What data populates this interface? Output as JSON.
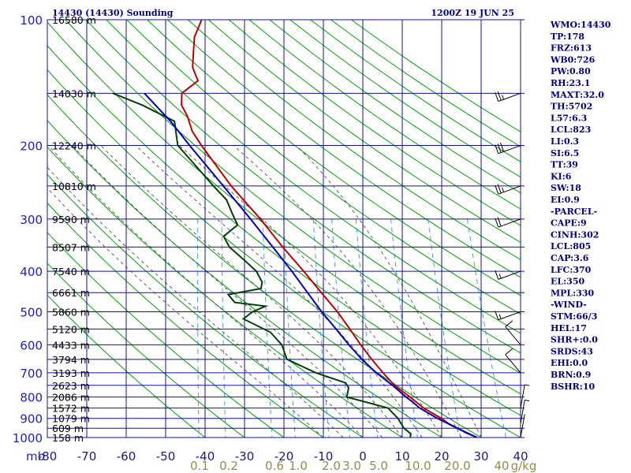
{
  "header": {
    "station": "14430 (14430) Sounding",
    "time": "1200Z 19 JUN 25"
  },
  "indices": [
    "WMO:14430",
    "TP:178",
    "FRZ:613",
    "WB0:726",
    "PW:0.80",
    "RH:23.1",
    "MAXT:32.0",
    "TH:5702",
    "L57:6.3",
    "LCL:823",
    "LI:0.3",
    "SI:6.5",
    "TT:39",
    "KI:6",
    "SW:18",
    "EI:0.9",
    "-PARCEL-",
    "CAPE:9",
    "CINH:302",
    "LCL:805",
    "CAP:3.6",
    "LFC:370",
    "EL:350",
    "MPL:330",
    "-WIND-",
    "STM:66/3",
    "HEL:17",
    "SHR+:0.0",
    "SRDS:43",
    "EHI:0.0",
    "BRN:0.9",
    "BSHR:10"
  ],
  "colors": {
    "grid": "#1010a0",
    "dry_adiabat": "#00a000",
    "moist_adiabat": "#505050",
    "mixing_ratio": "#3090ff",
    "temperature": "#c00000",
    "dewpoint": "#004000",
    "parcel": "#0000c0",
    "mixing_label": "#9a8a4a"
  },
  "chart_data": {
    "type": "line",
    "title": "14430 (14430) Sounding",
    "xlabel": "",
    "ylabel": "mb",
    "pressure_ticks": [
      100,
      200,
      300,
      400,
      500,
      600,
      700,
      800,
      900,
      1000
    ],
    "pressure_tick_labels": [
      "100",
      "200",
      "300",
      "400",
      "500",
      "600",
      "700",
      "800",
      "900",
      "1000"
    ],
    "temp_ticks": [
      -80,
      -70,
      -60,
      -50,
      -40,
      -30,
      -20,
      -10,
      0,
      10,
      20,
      30,
      40
    ],
    "temp_tick_labels": [
      "-80",
      "-70",
      "-60",
      "-50",
      "-40",
      "-30",
      "-20",
      "-10",
      "0",
      "10",
      "20",
      "30",
      "40"
    ],
    "mixing_ratio_labels": [
      "0.1",
      "0.2",
      "0.6",
      "1.0",
      "2.0",
      "3.0",
      "5.0",
      "10.0",
      "20.0",
      "40",
      "g/kg"
    ],
    "height_labels": [
      {
        "p": 100,
        "label": "16580 m"
      },
      {
        "p": 150,
        "label": "14030 m"
      },
      {
        "p": 200,
        "label": "12240 m"
      },
      {
        "p": 250,
        "label": "10810 m"
      },
      {
        "p": 300,
        "label": "9590 m"
      },
      {
        "p": 350,
        "label": "8507 m"
      },
      {
        "p": 400,
        "label": "7540 m"
      },
      {
        "p": 450,
        "label": "6661 m"
      },
      {
        "p": 500,
        "label": "5860 m"
      },
      {
        "p": 550,
        "label": "5120 m"
      },
      {
        "p": 600,
        "label": "4433 m"
      },
      {
        "p": 650,
        "label": "3794 m"
      },
      {
        "p": 700,
        "label": "3193 m"
      },
      {
        "p": 750,
        "label": "2623 m"
      },
      {
        "p": 800,
        "label": "2086 m"
      },
      {
        "p": 850,
        "label": "1572 m"
      },
      {
        "p": 900,
        "label": "1079 m"
      },
      {
        "p": 950,
        "label": "609 m"
      },
      {
        "p": 1000,
        "label": "158 m"
      }
    ],
    "series": [
      {
        "key": "temperature",
        "points": [
          [
            1000,
            29
          ],
          [
            975,
            26
          ],
          [
            950,
            23.6
          ],
          [
            925,
            21
          ],
          [
            900,
            19
          ],
          [
            850,
            14
          ],
          [
            800,
            10
          ],
          [
            750,
            5.5
          ],
          [
            700,
            2
          ],
          [
            650,
            -1.5
          ],
          [
            600,
            -5
          ],
          [
            550,
            -8.5
          ],
          [
            500,
            -12.5
          ],
          [
            450,
            -17.5
          ],
          [
            400,
            -23
          ],
          [
            350,
            -29.5
          ],
          [
            300,
            -36.5
          ],
          [
            250,
            -45.5
          ],
          [
            200,
            -55
          ],
          [
            185,
            -58
          ],
          [
            170,
            -60
          ],
          [
            160,
            -62
          ],
          [
            150,
            -62.5
          ],
          [
            140,
            -59
          ],
          [
            130,
            -61
          ],
          [
            120,
            -61.5
          ],
          [
            110,
            -62
          ],
          [
            100,
            -61
          ]
        ]
      },
      {
        "key": "dewpoint",
        "points": [
          [
            1000,
            12
          ],
          [
            980,
            12
          ],
          [
            950,
            10
          ],
          [
            925,
            9
          ],
          [
            900,
            8
          ],
          [
            875,
            6.5
          ],
          [
            850,
            5
          ],
          [
            800,
            -6
          ],
          [
            760,
            -6
          ],
          [
            740,
            -7
          ],
          [
            700,
            -15
          ],
          [
            650,
            -23
          ],
          [
            600,
            -25
          ],
          [
            560,
            -28.5
          ],
          [
            520,
            -36
          ],
          [
            500,
            -34
          ],
          [
            485,
            -31
          ],
          [
            475,
            -39
          ],
          [
            455,
            -41
          ],
          [
            440,
            -33
          ],
          [
            425,
            -33
          ],
          [
            400,
            -35
          ],
          [
            380,
            -38
          ],
          [
            350,
            -43
          ],
          [
            330,
            -45
          ],
          [
            310,
            -42
          ],
          [
            290,
            -44
          ],
          [
            270,
            -46
          ],
          [
            250,
            -50
          ],
          [
            200,
            -61
          ],
          [
            175,
            -63
          ],
          [
            160,
            -72
          ],
          [
            150,
            -80
          ]
        ]
      },
      {
        "key": "parcel",
        "points": [
          [
            1000,
            29
          ],
          [
            950,
            23.5
          ],
          [
            900,
            18
          ],
          [
            850,
            13
          ],
          [
            823,
            11
          ],
          [
            800,
            9
          ],
          [
            750,
            5
          ],
          [
            700,
            0.3
          ],
          [
            650,
            -4
          ],
          [
            600,
            -8
          ],
          [
            550,
            -12
          ],
          [
            500,
            -16.5
          ],
          [
            450,
            -21
          ],
          [
            400,
            -26
          ],
          [
            350,
            -32
          ],
          [
            300,
            -39
          ],
          [
            250,
            -47.5
          ],
          [
            200,
            -58
          ],
          [
            175,
            -64
          ],
          [
            150,
            -72
          ]
        ]
      }
    ],
    "dry_adiabats_theta_c": [
      -40,
      -30,
      -20,
      -10,
      0,
      10,
      20,
      30,
      40,
      50,
      60,
      70,
      80,
      90,
      100,
      110,
      120,
      130,
      140,
      150,
      160,
      170,
      180,
      190,
      200,
      210
    ],
    "moist_adiabats_c": [
      -10,
      -5,
      0,
      5,
      10,
      15,
      20,
      25,
      30
    ],
    "mixing_ratios_gkg": [
      0.1,
      0.2,
      0.6,
      1.0,
      2.0,
      3.0,
      5.0,
      10.0,
      20.0,
      40.0
    ],
    "wind_barbs": [
      {
        "p": 150,
        "dir": 250,
        "speed": 25
      },
      {
        "p": 200,
        "dir": 250,
        "speed": 30
      },
      {
        "p": 250,
        "dir": 250,
        "speed": 25
      },
      {
        "p": 300,
        "dir": 250,
        "speed": 20
      },
      {
        "p": 400,
        "dir": 250,
        "speed": 15
      },
      {
        "p": 500,
        "dir": 250,
        "speed": 15
      },
      {
        "p": 600,
        "dir": 320,
        "speed": 10
      },
      {
        "p": 700,
        "dir": 320,
        "speed": 10
      },
      {
        "p": 850,
        "dir": 10,
        "speed": 5
      },
      {
        "p": 925,
        "dir": 10,
        "speed": 5
      },
      {
        "p": 1000,
        "dir": 10,
        "speed": 0
      }
    ]
  }
}
